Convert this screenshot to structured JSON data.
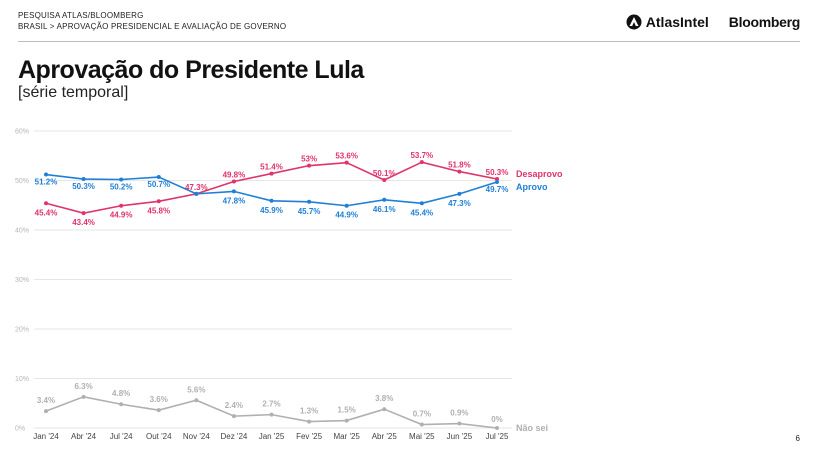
{
  "header": {
    "survey": "PESQUISA ATLAS/BLOOMBERG",
    "breadcrumb": "BRASIL > APROVAÇÃO PRESIDENCIAL E AVALIAÇÃO DE GOVERNO",
    "logo_atlas": "AtlasIntel",
    "logo_bloomberg": "Bloomberg"
  },
  "page_number": "6",
  "colors": {
    "desaprovo": "#e0336a",
    "aprovo": "#1f7fd6",
    "nao_sei": "#b0b0b0",
    "grid": "#e6e6e6"
  },
  "chart_data": {
    "type": "line",
    "title": "Aprovação do Presidente Lula",
    "subtitle": "[série temporal]",
    "categories": [
      "Jan '24",
      "Abr '24",
      "Jul '24",
      "Out '24",
      "Nov '24",
      "Dez '24",
      "Jan '25",
      "Fev '25",
      "Mar '25",
      "Abr '25",
      "Mai '25",
      "Jun '25",
      "Jul '25"
    ],
    "ylim": [
      0,
      60
    ],
    "yticks": [
      "0%",
      "10%",
      "20%",
      "30%",
      "40%",
      "50%",
      "60%"
    ],
    "grid": true,
    "series": [
      {
        "key": "desaprovo",
        "name": "Desaprovo",
        "values": [
          45.4,
          43.4,
          44.9,
          45.8,
          47.3,
          49.8,
          51.4,
          53,
          53.6,
          50.1,
          53.7,
          51.8,
          50.3
        ],
        "labels": [
          "45.4%",
          "43.4%",
          "44.9%",
          "45.8%",
          "47.3%",
          "49.8%",
          "51.4%",
          "53%",
          "53.6%",
          "50.1%",
          "53.7%",
          "51.8%",
          "50.3%"
        ]
      },
      {
        "key": "aprovo",
        "name": "Aprovo",
        "values": [
          51.2,
          50.3,
          50.2,
          50.7,
          47.3,
          47.8,
          45.9,
          45.7,
          44.9,
          46.1,
          45.4,
          47.3,
          49.7
        ],
        "labels": [
          "51.2%",
          "50.3%",
          "50.2%",
          "50.7%",
          "",
          "47.8%",
          "45.9%",
          "45.7%",
          "44.9%",
          "46.1%",
          "45.4%",
          "47.3%",
          "49.7%"
        ]
      },
      {
        "key": "nao_sei",
        "name": "Não sei",
        "values": [
          3.4,
          6.3,
          4.8,
          3.6,
          5.6,
          2.4,
          2.7,
          1.3,
          1.5,
          3.8,
          0.7,
          0.9,
          0
        ],
        "labels": [
          "3.4%",
          "6.3%",
          "4.8%",
          "3.6%",
          "5.6%",
          "2.4%",
          "2.7%",
          "1.3%",
          "1.5%",
          "3.8%",
          "0.7%",
          "0.9%",
          "0%"
        ]
      }
    ]
  }
}
